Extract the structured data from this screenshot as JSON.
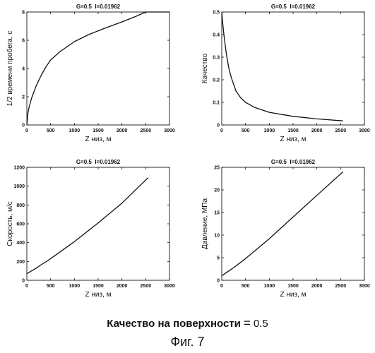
{
  "chart_data": [
    {
      "type": "line",
      "title": "G=0.5  I=0.01962",
      "xlabel": "Z низ, м",
      "ylabel": "1/2 времени пробега, с",
      "xlim": [
        0,
        3000
      ],
      "ylim": [
        0,
        8
      ],
      "xticks": [
        0,
        500,
        1000,
        1500,
        2000,
        2500,
        3000
      ],
      "yticks": [
        0,
        2,
        4,
        6,
        8
      ],
      "grid": false,
      "x": [
        0,
        25,
        50,
        100,
        200,
        300,
        400,
        500,
        700,
        1000,
        1300,
        1600,
        2000,
        2300,
        2500,
        2700,
        3000
      ],
      "y": [
        0,
        0.9,
        1.3,
        1.9,
        2.8,
        3.5,
        4.1,
        4.6,
        5.2,
        5.9,
        6.4,
        6.8,
        7.3,
        7.7,
        8.0,
        8.0,
        8.0
      ]
    },
    {
      "type": "line",
      "title": "G=0.5  I=0.01962",
      "xlabel": "Z низ, м",
      "ylabel": "Качество",
      "xlim": [
        0,
        3000
      ],
      "ylim": [
        0,
        0.5
      ],
      "xticks": [
        0,
        500,
        1000,
        1500,
        2000,
        2500,
        3000
      ],
      "yticks": [
        0,
        0.1,
        0.2,
        0.3,
        0.4,
        0.5
      ],
      "grid": false,
      "x": [
        0,
        25,
        50,
        100,
        150,
        200,
        300,
        400,
        500,
        700,
        1000,
        1500,
        2000,
        2550
      ],
      "y": [
        0.5,
        0.44,
        0.39,
        0.31,
        0.25,
        0.21,
        0.15,
        0.12,
        0.1,
        0.077,
        0.056,
        0.038,
        0.027,
        0.018
      ]
    },
    {
      "type": "line",
      "title": "G=0.5  I=0.01962",
      "xlabel": "Z низ, м",
      "ylabel": "Скорость, м/с",
      "xlim": [
        0,
        3000
      ],
      "ylim": [
        0,
        1200
      ],
      "xticks": [
        0,
        500,
        1000,
        1500,
        2000,
        2500,
        3000
      ],
      "yticks": [
        0,
        200,
        400,
        600,
        800,
        1000,
        1200
      ],
      "grid": false,
      "x": [
        0,
        100,
        200,
        300,
        400,
        500,
        750,
        1000,
        1500,
        2000,
        2550
      ],
      "y": [
        70,
        100,
        130,
        165,
        195,
        230,
        320,
        410,
        610,
        820,
        1090
      ]
    },
    {
      "type": "line",
      "title": "G=0.5  I=0.01962",
      "xlabel": "Z низ, м",
      "ylabel": "Давление, МПа",
      "xlim": [
        0,
        3000
      ],
      "ylim": [
        0,
        25
      ],
      "xticks": [
        0,
        500,
        1000,
        1500,
        2000,
        2500,
        3000
      ],
      "yticks": [
        0,
        5,
        10,
        15,
        20,
        25
      ],
      "grid": false,
      "x": [
        0,
        100,
        250,
        500,
        750,
        1000,
        1500,
        2000,
        2550
      ],
      "y": [
        1,
        1.7,
        2.8,
        4.8,
        7,
        9.2,
        14,
        18.8,
        24
      ]
    }
  ],
  "caption": {
    "label": "Качество на поверхности",
    "eq": "=",
    "value": "0.5"
  },
  "figure_label": "Фиг. 7",
  "colors": {
    "line": "#111111",
    "axis": "#111111",
    "background": "#ffffff"
  }
}
